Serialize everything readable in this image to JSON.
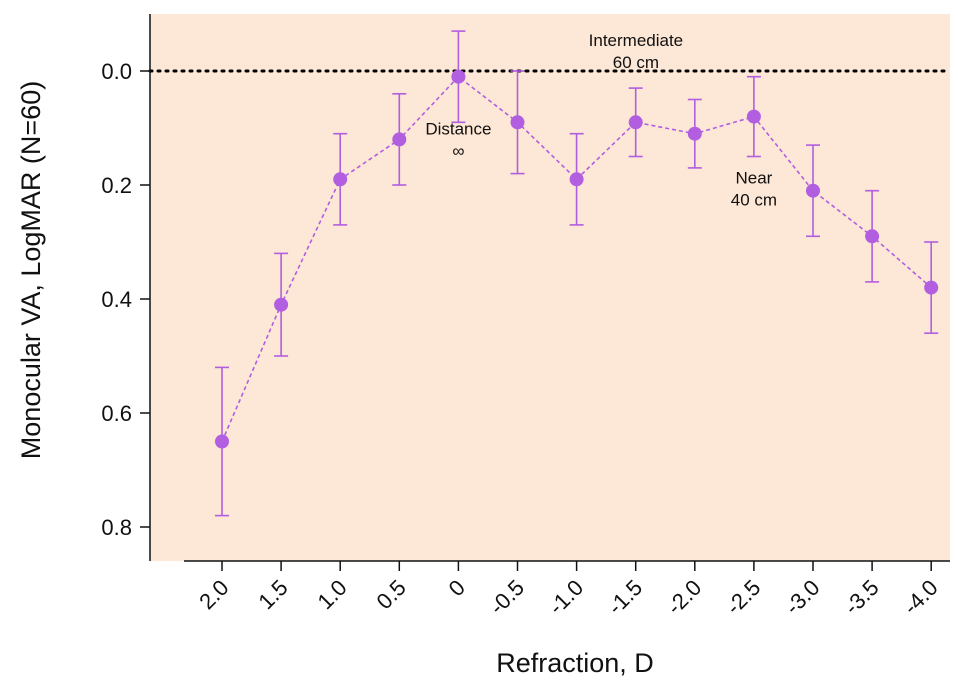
{
  "chart_data": {
    "type": "line",
    "title": "",
    "xlabel": "Refraction, D",
    "ylabel": "Monocular VA, LogMAR (N=60)",
    "y_reversed": true,
    "ylim": [
      -0.1,
      0.85
    ],
    "y_ticks": [
      0.0,
      0.2,
      0.4,
      0.6,
      0.8
    ],
    "y_tick_labels": [
      "0.0",
      "0.2",
      "0.4",
      "0.6",
      "0.8"
    ],
    "categories": [
      "2.0",
      "1.5",
      "1.0",
      "0.5",
      "0",
      "-0.5",
      "-1.0",
      "-1.5",
      "-2.0",
      "-2.5",
      "-3.0",
      "-3.5",
      "-4.0"
    ],
    "grid": false,
    "reference_line": {
      "y": 0.0,
      "style": "dotted",
      "color": "#000000"
    },
    "series": [
      {
        "values": [
          0.65,
          0.41,
          0.19,
          0.12,
          0.01,
          0.09,
          0.19,
          0.09,
          0.11,
          0.08,
          0.21,
          0.29,
          0.38
        ],
        "error": [
          0.13,
          0.09,
          0.08,
          0.08,
          0.08,
          0.09,
          0.08,
          0.06,
          0.06,
          0.07,
          0.08,
          0.08,
          0.08
        ],
        "color": "#b15ee0",
        "line_style": "dashed",
        "marker": "circle"
      }
    ],
    "annotations": [
      {
        "lines": [
          "Distance",
          "∞"
        ],
        "x": "0",
        "y": 0.12
      },
      {
        "lines": [
          "Intermediate",
          "60 cm"
        ],
        "x": "-2.5",
        "y": -0.04
      },
      {
        "lines": [
          "Near",
          "40 cm"
        ],
        "x": "-2.5",
        "y": 0.19
      }
    ],
    "plot_background": "#fde7d6"
  }
}
